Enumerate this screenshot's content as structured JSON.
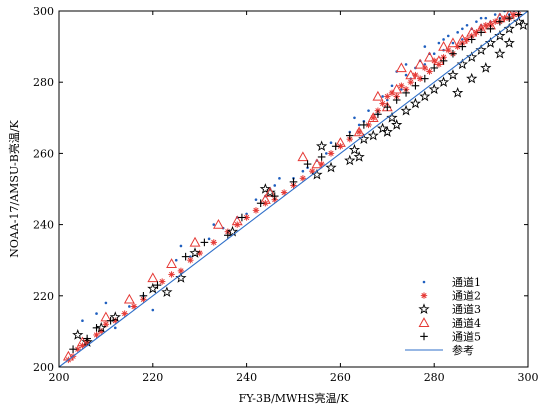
{
  "chart_data": {
    "type": "scatter",
    "xlabel": "FY-3B/MWHS亮温/K",
    "ylabel": "NOAA-17/AMSU-B亮温/K",
    "xlim": [
      200,
      300
    ],
    "ylim": [
      200,
      300
    ],
    "xticks": [
      200,
      220,
      240,
      260,
      280,
      300
    ],
    "yticks": [
      200,
      220,
      240,
      260,
      280,
      300
    ],
    "grid": false,
    "legend_position": "bottom-right",
    "series": [
      {
        "name": "通道1",
        "marker": "dot",
        "color": "#1f5fbf",
        "points": [
          [
            205,
            213
          ],
          [
            208,
            215
          ],
          [
            210,
            218
          ],
          [
            212,
            211
          ],
          [
            215,
            217
          ],
          [
            218,
            220
          ],
          [
            220,
            216
          ],
          [
            222,
            224
          ],
          [
            225,
            230
          ],
          [
            228,
            231
          ],
          [
            230,
            232
          ],
          [
            232,
            236
          ],
          [
            235,
            239
          ],
          [
            238,
            242
          ],
          [
            240,
            243
          ],
          [
            242,
            247
          ],
          [
            244,
            248
          ],
          [
            245,
            250
          ],
          [
            246,
            251
          ],
          [
            248,
            249
          ],
          [
            250,
            253
          ],
          [
            252,
            255
          ],
          [
            255,
            258
          ],
          [
            257,
            260
          ],
          [
            258,
            263
          ],
          [
            260,
            262
          ],
          [
            262,
            266
          ],
          [
            264,
            268
          ],
          [
            265,
            269
          ],
          [
            266,
            272
          ],
          [
            268,
            271
          ],
          [
            270,
            275
          ],
          [
            271,
            279
          ],
          [
            272,
            283
          ],
          [
            273,
            278
          ],
          [
            274,
            282
          ],
          [
            275,
            281
          ],
          [
            276,
            284
          ],
          [
            277,
            286
          ],
          [
            278,
            285
          ],
          [
            279,
            288
          ],
          [
            280,
            288
          ],
          [
            281,
            291
          ],
          [
            282,
            289
          ],
          [
            283,
            293
          ],
          [
            284,
            291
          ],
          [
            285,
            294
          ],
          [
            286,
            292
          ],
          [
            287,
            296
          ],
          [
            288,
            295
          ],
          [
            289,
            297
          ],
          [
            290,
            296
          ],
          [
            291,
            298
          ],
          [
            292,
            297
          ],
          [
            293,
            299
          ],
          [
            294,
            298
          ],
          [
            295,
            300
          ],
          [
            296,
            299
          ],
          [
            297,
            300
          ],
          [
            298,
            300
          ],
          [
            226,
            234
          ],
          [
            233,
            240
          ],
          [
            247,
            253
          ],
          [
            253,
            256
          ],
          [
            263,
            270
          ],
          [
            269,
            276
          ],
          [
            274,
            285
          ],
          [
            278,
            290
          ],
          [
            282,
            292
          ],
          [
            286,
            295
          ],
          [
            290,
            298
          ],
          [
            294,
            299
          ]
        ]
      },
      {
        "name": "通道2",
        "marker": "asterisk",
        "color": "#e53935",
        "points": [
          [
            202,
            202
          ],
          [
            203,
            203
          ],
          [
            204,
            205
          ],
          [
            205,
            206
          ],
          [
            206,
            207
          ],
          [
            208,
            209
          ],
          [
            209,
            210
          ],
          [
            210,
            212
          ],
          [
            212,
            213
          ],
          [
            214,
            215
          ],
          [
            216,
            217
          ],
          [
            218,
            219
          ],
          [
            222,
            224
          ],
          [
            224,
            226
          ],
          [
            226,
            227
          ],
          [
            228,
            230
          ],
          [
            230,
            232
          ],
          [
            233,
            235
          ],
          [
            236,
            238
          ],
          [
            238,
            240
          ],
          [
            240,
            242
          ],
          [
            242,
            244
          ],
          [
            244,
            246
          ],
          [
            246,
            247
          ],
          [
            248,
            249
          ],
          [
            250,
            251
          ],
          [
            252,
            253
          ],
          [
            254,
            255
          ],
          [
            256,
            257
          ],
          [
            258,
            260
          ],
          [
            260,
            262
          ],
          [
            262,
            264
          ],
          [
            264,
            266
          ],
          [
            266,
            268
          ],
          [
            267,
            270
          ],
          [
            268,
            272
          ],
          [
            269,
            274
          ],
          [
            270,
            276
          ],
          [
            271,
            277
          ],
          [
            272,
            276
          ],
          [
            273,
            279
          ],
          [
            274,
            278
          ],
          [
            275,
            280
          ],
          [
            276,
            282
          ],
          [
            277,
            281
          ],
          [
            278,
            284
          ],
          [
            279,
            283
          ],
          [
            280,
            286
          ],
          [
            281,
            285
          ],
          [
            282,
            287
          ],
          [
            283,
            289
          ],
          [
            284,
            288
          ],
          [
            285,
            290
          ],
          [
            286,
            291
          ],
          [
            287,
            292
          ],
          [
            288,
            293
          ],
          [
            289,
            294
          ],
          [
            290,
            295
          ],
          [
            291,
            296
          ],
          [
            292,
            296
          ],
          [
            293,
            297
          ],
          [
            294,
            297
          ],
          [
            295,
            298
          ],
          [
            296,
            298
          ],
          [
            297,
            299
          ],
          [
            298,
            299
          ]
        ]
      },
      {
        "name": "通道3",
        "marker": "star",
        "color": "#000000",
        "points": [
          [
            204,
            209
          ],
          [
            206,
            207
          ],
          [
            209,
            211
          ],
          [
            212,
            214
          ],
          [
            220,
            222
          ],
          [
            223,
            221
          ],
          [
            226,
            225
          ],
          [
            229,
            232
          ],
          [
            237,
            238
          ],
          [
            244,
            250
          ],
          [
            245,
            249
          ],
          [
            255,
            254
          ],
          [
            256,
            262
          ],
          [
            258,
            256
          ],
          [
            262,
            258
          ],
          [
            263,
            261
          ],
          [
            264,
            259
          ],
          [
            265,
            264
          ],
          [
            267,
            265
          ],
          [
            269,
            267
          ],
          [
            270,
            266
          ],
          [
            271,
            270
          ],
          [
            272,
            268
          ],
          [
            274,
            272
          ],
          [
            276,
            274
          ],
          [
            278,
            276
          ],
          [
            280,
            278
          ],
          [
            282,
            280
          ],
          [
            284,
            282
          ],
          [
            286,
            285
          ],
          [
            288,
            287
          ],
          [
            290,
            289
          ],
          [
            292,
            291
          ],
          [
            294,
            293
          ],
          [
            296,
            295
          ],
          [
            298,
            297
          ],
          [
            285,
            277
          ],
          [
            288,
            281
          ],
          [
            291,
            284
          ],
          [
            294,
            288
          ],
          [
            296,
            291
          ],
          [
            299,
            296
          ]
        ]
      },
      {
        "name": "通道4",
        "marker": "triangle",
        "color": "#e53935",
        "points": [
          [
            202,
            203
          ],
          [
            205,
            207
          ],
          [
            210,
            214
          ],
          [
            215,
            219
          ],
          [
            220,
            225
          ],
          [
            224,
            229
          ],
          [
            229,
            235
          ],
          [
            234,
            240
          ],
          [
            238,
            241
          ],
          [
            244,
            247
          ],
          [
            245,
            249
          ],
          [
            252,
            259
          ],
          [
            255,
            257
          ],
          [
            260,
            263
          ],
          [
            264,
            266
          ],
          [
            267,
            270
          ],
          [
            268,
            276
          ],
          [
            270,
            273
          ],
          [
            272,
            278
          ],
          [
            273,
            284
          ],
          [
            275,
            282
          ],
          [
            277,
            285
          ],
          [
            279,
            287
          ],
          [
            281,
            286
          ],
          [
            282,
            290
          ],
          [
            284,
            291
          ],
          [
            286,
            292
          ],
          [
            288,
            294
          ],
          [
            290,
            295
          ],
          [
            292,
            296
          ],
          [
            294,
            298
          ],
          [
            296,
            299
          ]
        ]
      },
      {
        "name": "通道5",
        "marker": "plus",
        "color": "#000000",
        "points": [
          [
            203,
            205
          ],
          [
            206,
            208
          ],
          [
            208,
            211
          ],
          [
            211,
            213
          ],
          [
            218,
            220
          ],
          [
            221,
            223
          ],
          [
            227,
            231
          ],
          [
            231,
            235
          ],
          [
            236,
            237
          ],
          [
            239,
            242
          ],
          [
            243,
            246
          ],
          [
            246,
            248
          ],
          [
            250,
            252
          ],
          [
            253,
            257
          ],
          [
            256,
            259
          ],
          [
            259,
            262
          ],
          [
            262,
            265
          ],
          [
            265,
            268
          ],
          [
            268,
            271
          ],
          [
            270,
            273
          ],
          [
            272,
            275
          ],
          [
            274,
            277
          ],
          [
            276,
            279
          ],
          [
            278,
            281
          ],
          [
            280,
            284
          ],
          [
            282,
            286
          ],
          [
            284,
            288
          ],
          [
            286,
            290
          ],
          [
            288,
            292
          ],
          [
            290,
            294
          ],
          [
            292,
            295
          ],
          [
            294,
            297
          ],
          [
            296,
            298
          ],
          [
            298,
            299
          ]
        ]
      },
      {
        "name": "参考",
        "marker": "line",
        "color": "#2f6fc9",
        "line": [
          [
            200,
            200
          ],
          [
            300,
            300
          ]
        ]
      }
    ]
  }
}
